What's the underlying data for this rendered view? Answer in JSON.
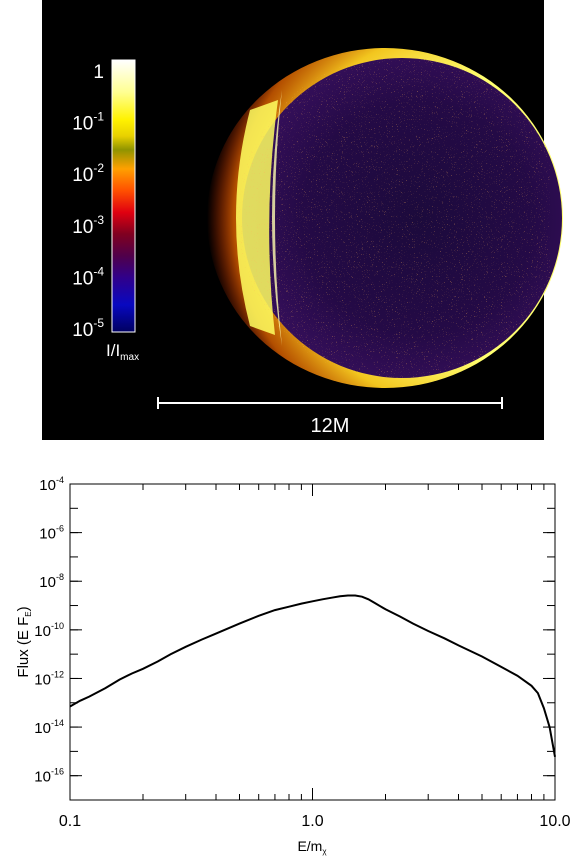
{
  "image_panel": {
    "colorbar": {
      "tick_labels": [
        {
          "base": "1",
          "exp": ""
        },
        {
          "base": "10",
          "exp": "-1"
        },
        {
          "base": "10",
          "exp": "-2"
        },
        {
          "base": "10",
          "exp": "-3"
        },
        {
          "base": "10",
          "exp": "-4"
        },
        {
          "base": "10",
          "exp": "-5"
        }
      ],
      "label_main": "I/I",
      "label_sub": "max",
      "colors": [
        "#ffffff",
        "#ffff90",
        "#fff200",
        "#f0d000",
        "#a0a000",
        "#ffb000",
        "#ff6000",
        "#ff0000",
        "#8b0000",
        "#5a003a",
        "#3a007a",
        "#1010b0",
        "#0000c0",
        "#000060"
      ]
    },
    "scale_bar_label": "12M",
    "colors": {
      "background": "#000000",
      "disk_dark": "#1a0a3a",
      "limb_glow": "#ffe24a",
      "hot": "#ffff60"
    }
  },
  "chart_data": {
    "type": "line",
    "xlabel_main": "E/m",
    "xlabel_sub": "χ",
    "ylabel_main": "Flux (E F",
    "ylabel_sub": "E",
    "ylabel_close": ")",
    "x_scale": "log",
    "y_scale": "log",
    "xlim": [
      0.1,
      10.0
    ],
    "ylim": [
      1e-17,
      0.0001
    ],
    "x_ticks": [
      {
        "value": 0.1,
        "label": "0.1"
      },
      {
        "value": 1.0,
        "label": "1.0"
      },
      {
        "value": 10.0,
        "label": "10.0"
      }
    ],
    "y_ticks": [
      {
        "value": 1e-16,
        "base": "10",
        "exp": "-16"
      },
      {
        "value": 1e-14,
        "base": "10",
        "exp": "-14"
      },
      {
        "value": 1e-12,
        "base": "10",
        "exp": "-12"
      },
      {
        "value": 1e-10,
        "base": "10",
        "exp": "-10"
      },
      {
        "value": 1e-08,
        "base": "10",
        "exp": "-8"
      },
      {
        "value": 1e-06,
        "base": "10",
        "exp": "-6"
      },
      {
        "value": 0.0001,
        "base": "10",
        "exp": "-4"
      }
    ],
    "series": [
      {
        "color": "#000000",
        "x": [
          0.1,
          0.11,
          0.12,
          0.14,
          0.16,
          0.18,
          0.2,
          0.23,
          0.26,
          0.3,
          0.35,
          0.4,
          0.5,
          0.6,
          0.7,
          0.8,
          0.9,
          1.0,
          1.1,
          1.2,
          1.3,
          1.4,
          1.5,
          1.6,
          1.7,
          1.8,
          2.0,
          2.3,
          2.6,
          3.0,
          3.5,
          4.0,
          5.0,
          6.0,
          7.0,
          8.0,
          8.5,
          9.0,
          9.5,
          10.0
        ],
        "y": [
          7e-14,
          1.2e-13,
          1.8e-13,
          4e-13,
          9e-13,
          1.6e-12,
          2.5e-12,
          5e-12,
          1e-11,
          2e-11,
          4e-11,
          7e-11,
          1.8e-10,
          3.8e-10,
          6.5e-10,
          9e-10,
          1.2e-09,
          1.5e-09,
          1.8e-09,
          2.1e-09,
          2.4e-09,
          2.6e-09,
          2.6e-09,
          2.3e-09,
          1.8e-09,
          1.3e-09,
          7e-10,
          3.5e-10,
          1.8e-10,
          9e-11,
          4.5e-11,
          2.3e-11,
          8e-12,
          3e-12,
          1.3e-12,
          5e-13,
          2.5e-13,
          6e-14,
          1e-14,
          6e-16
        ]
      }
    ]
  }
}
